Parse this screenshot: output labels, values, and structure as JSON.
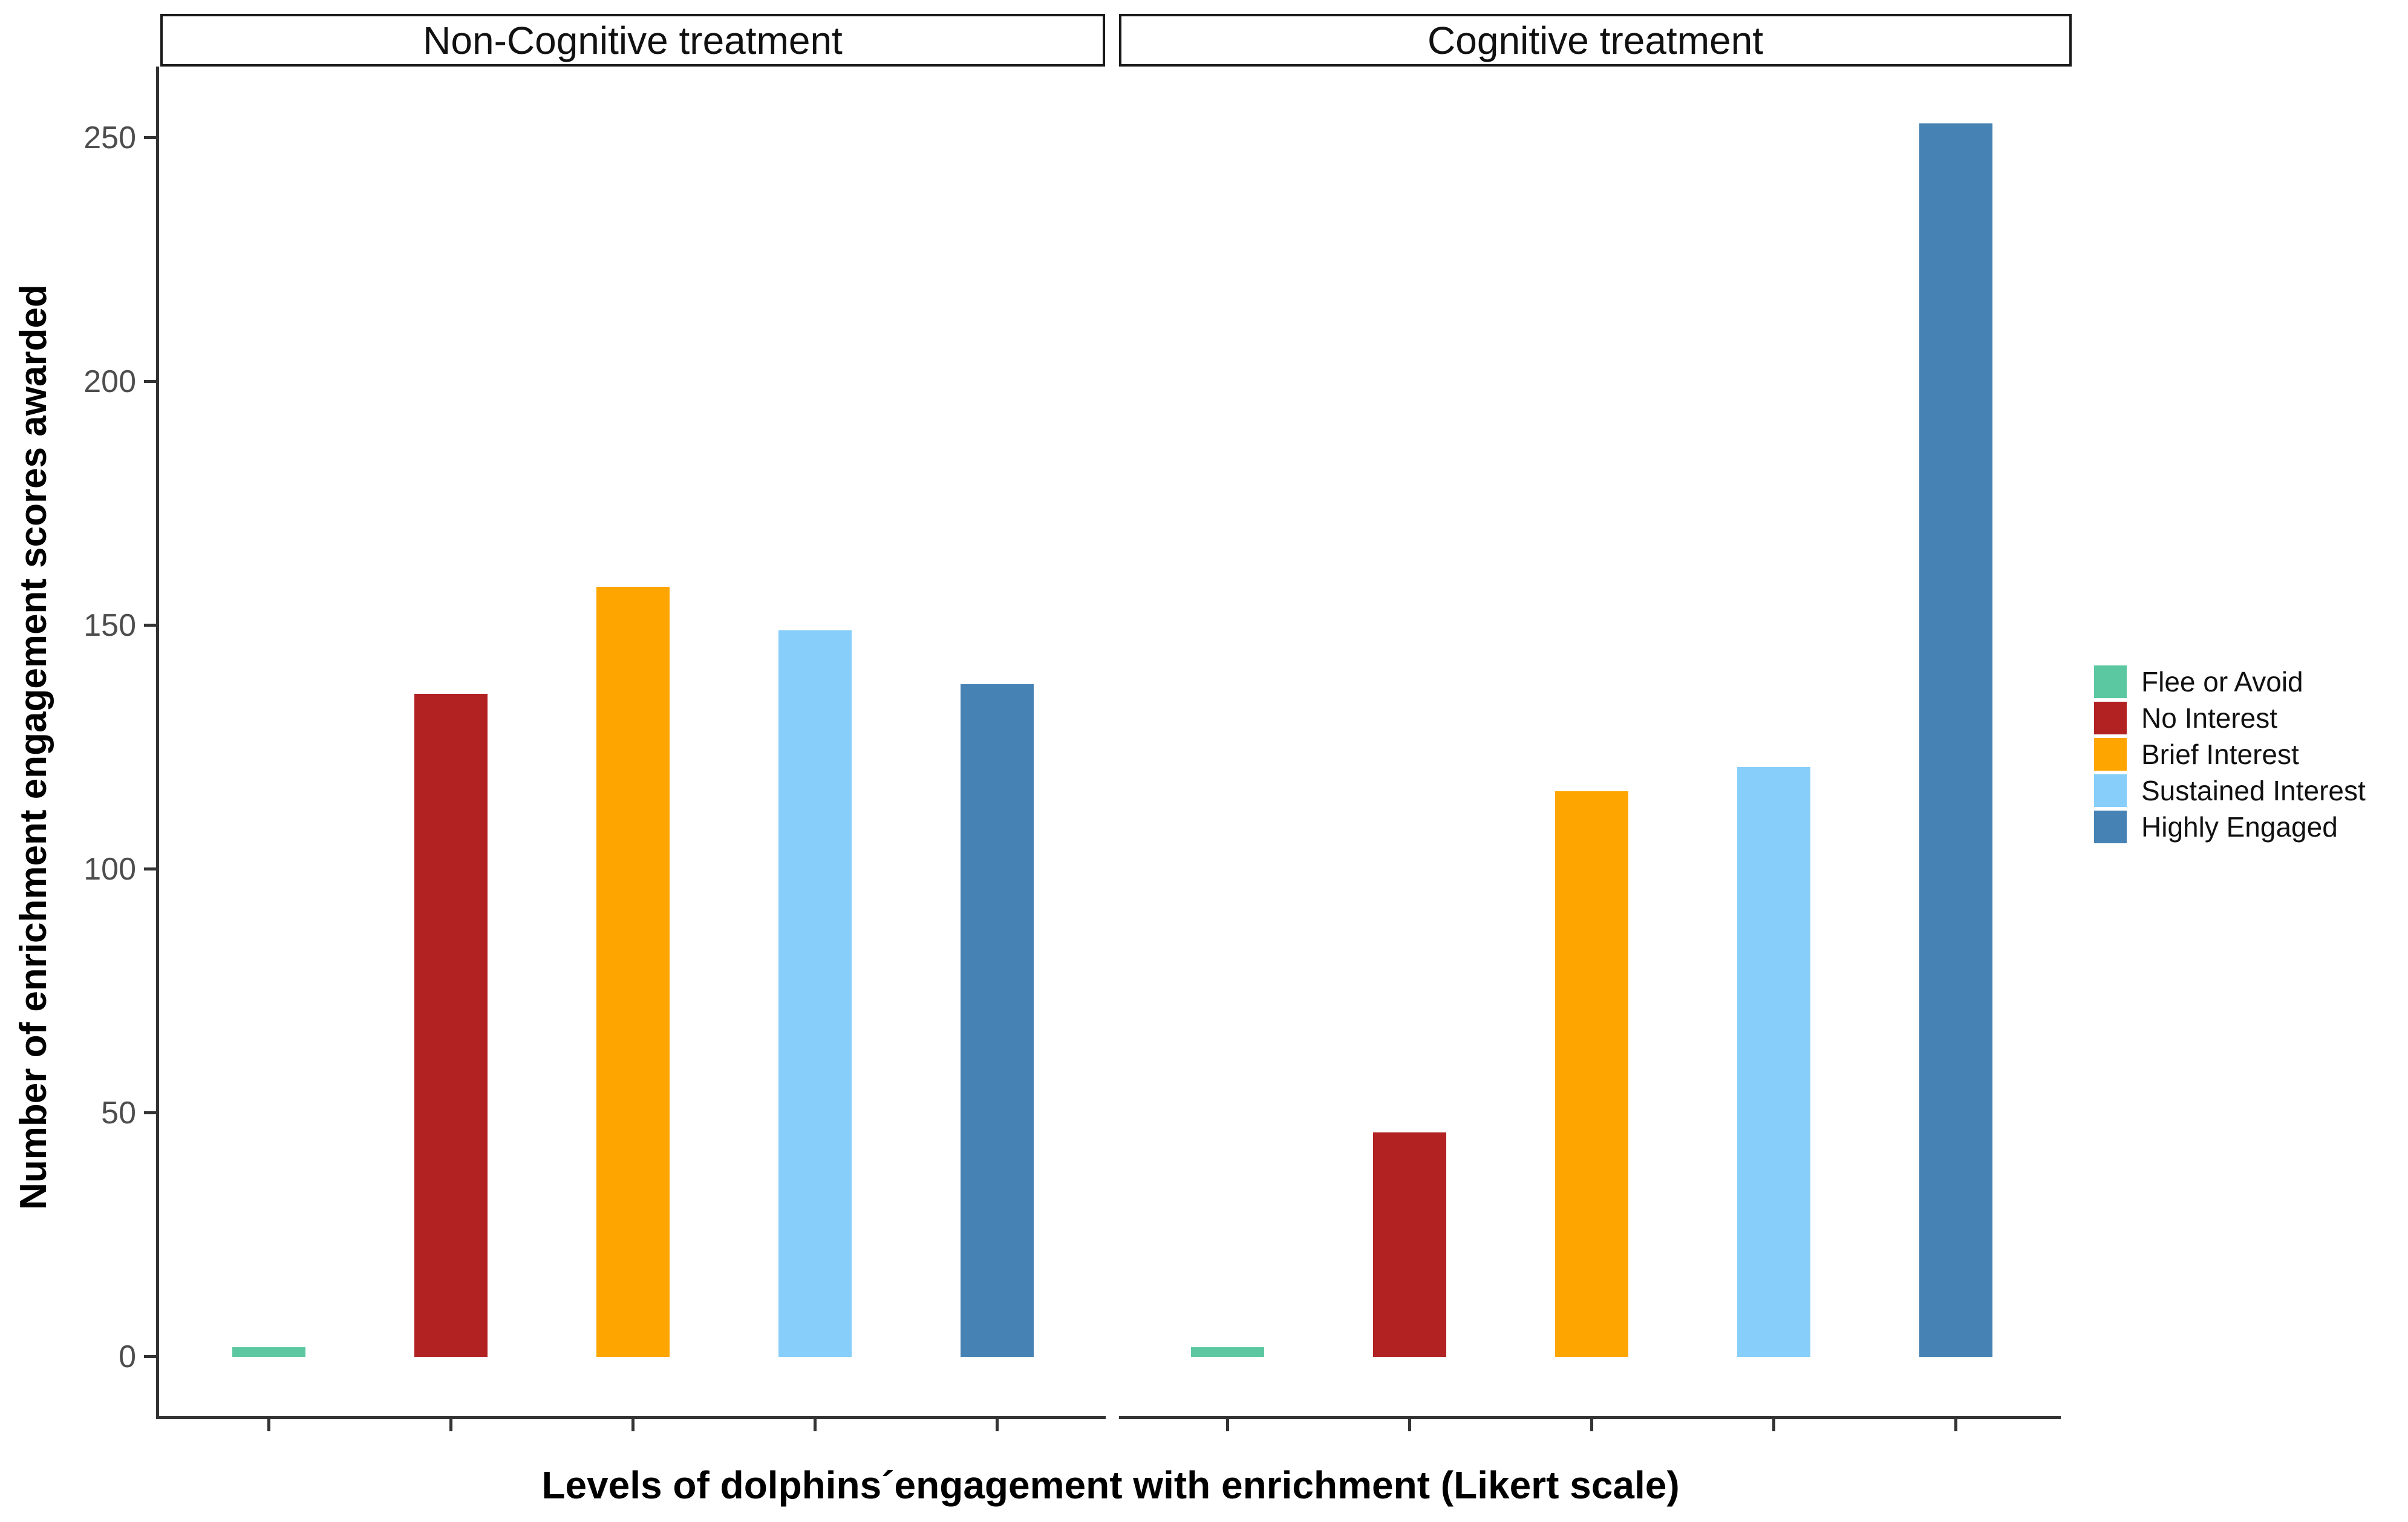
{
  "chart_data": {
    "type": "bar",
    "facets": [
      {
        "label": "Non-Cognitive treatment",
        "values": [
          2,
          136,
          158,
          149,
          138
        ]
      },
      {
        "label": "Cognitive treatment",
        "values": [
          2,
          46,
          116,
          121,
          253
        ]
      }
    ],
    "categories": [
      "Flee or Avoid",
      "No Interest",
      "Brief Interest",
      "Sustained Interest",
      "Highly Engaged"
    ],
    "colors": [
      "#5CC8A1",
      "#B22222",
      "#FFA500",
      "#87CEFA",
      "#4682B4"
    ],
    "xlabel": "Levels of dolphins´engagement with enrichment (Likert scale)",
    "ylabel": "Number of enrichment engagement scores awarded",
    "yticks": [
      0,
      50,
      100,
      150,
      200,
      250
    ],
    "ylim": [
      0,
      260
    ],
    "grid": "off",
    "legend_position": "right",
    "legend_entries": [
      {
        "label": "Flee or Avoid",
        "color": "#5CC8A1"
      },
      {
        "label": "No Interest",
        "color": "#B22222"
      },
      {
        "label": "Brief Interest",
        "color": "#FFA500"
      },
      {
        "label": "Sustained Interest",
        "color": "#87CEFA"
      },
      {
        "label": "Highly Engaged",
        "color": "#4682B4"
      }
    ],
    "axis_color": "#333333",
    "tick_label_color": "#4d4d4d"
  }
}
